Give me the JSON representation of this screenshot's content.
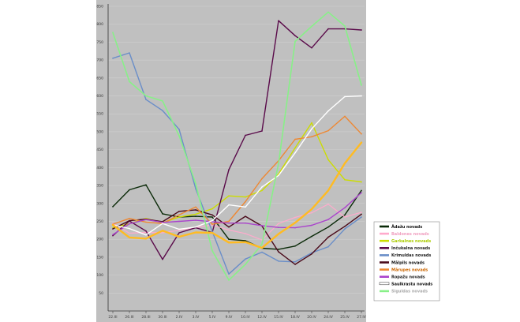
{
  "chart_data": {
    "type": "line",
    "title": "",
    "xlabel": "",
    "ylabel": "",
    "grid": true,
    "legend_placement": "right",
    "background": "#c0c0c0",
    "categories": [
      "22.III",
      "26.III",
      "28.III",
      "30.III",
      "2.IV",
      "3.IV",
      "5.IV",
      "9.IV",
      "10.IV",
      "12.IV",
      "15.IV",
      "18.IV",
      "20.IV",
      "24.IV",
      "25.IV",
      "27.IV"
    ],
    "y_ticks": [
      50,
      100,
      150,
      200,
      250,
      300,
      350,
      400,
      450,
      500,
      550,
      600,
      650,
      700,
      750,
      800,
      850
    ],
    "ylim": [
      0,
      850
    ],
    "series": [
      {
        "name": "Ādažu novads",
        "color": "#0a2a08",
        "label_color": "#111111",
        "width": 1.4,
        "values": [
          291,
          338,
          352,
          271,
          262,
          264,
          262,
          200,
          196,
          175,
          172,
          181,
          208,
          234,
          268,
          336
        ]
      },
      {
        "name": "Baldones novads",
        "color": "#ffaacc",
        "label_color": "#f0a0c0",
        "width": 1.2,
        "values": [
          245,
          217,
          219,
          218,
          225,
          233,
          240,
          226,
          216,
          198,
          244,
          261,
          274,
          298,
          262,
          275
        ]
      },
      {
        "name": "Garkalnes novads",
        "color": "#ccdd00",
        "label_color": "#aacc00",
        "width": 1.4,
        "values": [
          232,
          243,
          258,
          246,
          262,
          270,
          285,
          321,
          318,
          336,
          382,
          455,
          525,
          422,
          366,
          360
        ]
      },
      {
        "name": "Inčukalna novads",
        "color": "#5a0a4a",
        "label_color": "#222222",
        "width": 1.4,
        "values": [
          210,
          251,
          223,
          144,
          218,
          232,
          219,
          394,
          490,
          502,
          810,
          768,
          734,
          787,
          787,
          784
        ]
      },
      {
        "name": "Krimuldas novads",
        "color": "#6a8ec8",
        "label_color": "#222222",
        "width": 1.4,
        "values": [
          705,
          720,
          590,
          559,
          507,
          341,
          222,
          103,
          145,
          164,
          139,
          137,
          162,
          179,
          229,
          262
        ]
      },
      {
        "name": "Mālpils novads",
        "color": "#4a0a1a",
        "label_color": "#111111",
        "width": 1.4,
        "values": [
          229,
          252,
          256,
          249,
          278,
          282,
          268,
          234,
          264,
          237,
          165,
          130,
          159,
          206,
          236,
          270
        ]
      },
      {
        "name": "Mārupes novads",
        "color": "#ee8833",
        "label_color": "#cc6600",
        "width": 1.4,
        "values": [
          242,
          258,
          248,
          244,
          268,
          290,
          242,
          250,
          305,
          369,
          419,
          479,
          486,
          503,
          543,
          494
        ]
      },
      {
        "name": "Ropažu novads",
        "color": "#aa44cc",
        "label_color": "#222222",
        "width": 1.4,
        "values": [
          213,
          243,
          255,
          247,
          250,
          253,
          249,
          245,
          245,
          238,
          233,
          232,
          239,
          255,
          288,
          330
        ]
      },
      {
        "name": "Saulkrastu novads",
        "color": "#ffffff",
        "label_color": "#111111",
        "width": 1.4,
        "values": [
          240,
          230,
          212,
          244,
          228,
          234,
          252,
          296,
          290,
          346,
          378,
          441,
          508,
          558,
          598,
          600
        ]
      },
      {
        "name": "Siguldas novads",
        "color": "#88f088",
        "label_color": "#aaaaaa",
        "width": 1.6,
        "values": [
          777,
          640,
          600,
          586,
          489,
          355,
          168,
          86,
          130,
          186,
          411,
          752,
          794,
          834,
          795,
          630
        ]
      },
      {
        "name": "",
        "color": "#ffbb22",
        "label_color": "#ffbb22",
        "width": 2.4,
        "values": [
          240,
          205,
          202,
          224,
          207,
          219,
          218,
          191,
          192,
          176,
          215,
          246,
          284,
          336,
          412,
          470
        ]
      }
    ]
  }
}
